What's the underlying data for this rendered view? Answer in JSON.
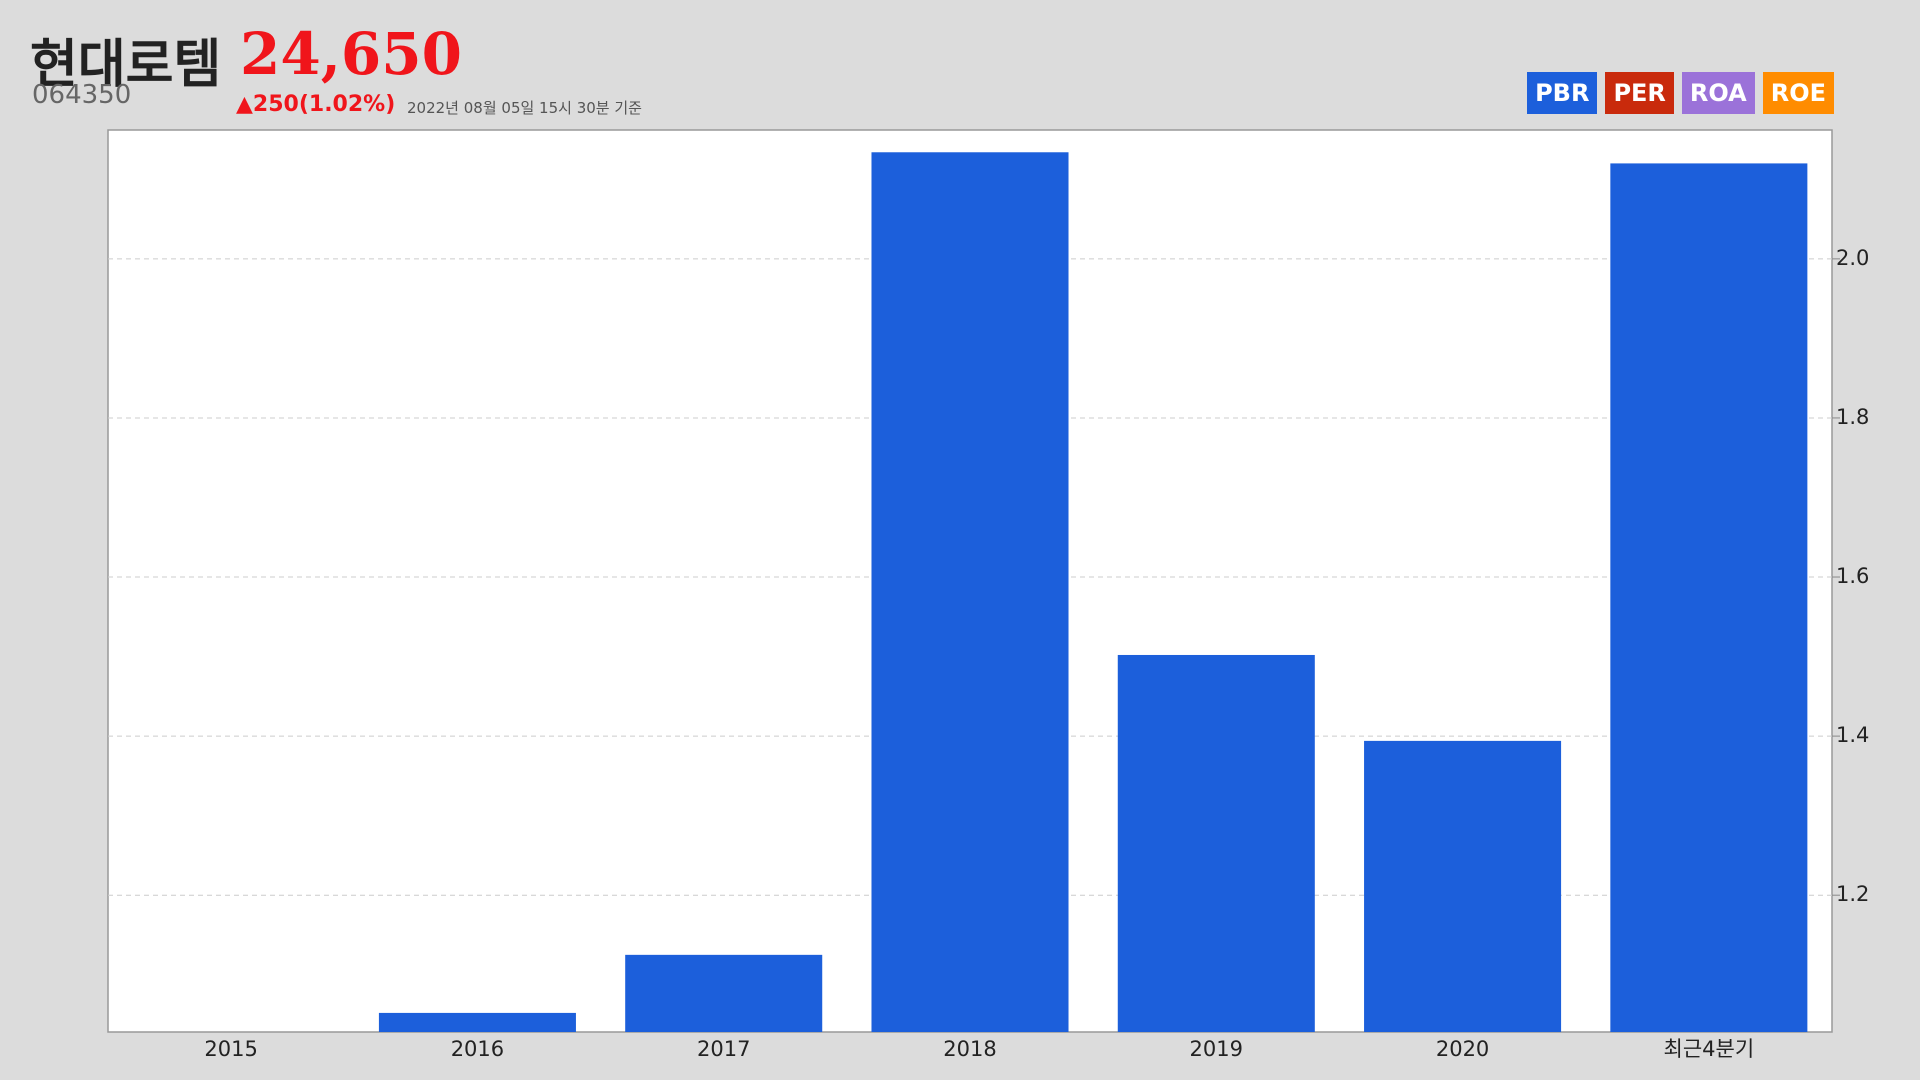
{
  "header": {
    "name": "현대로템",
    "price": "24,650",
    "code": "064350",
    "change": "▲250(1.02%)",
    "as_of": "2022년 08월 05일 15시 30분 기준",
    "buttons": [
      {
        "label": "PBR",
        "color": "#1c5fdb"
      },
      {
        "label": "PER",
        "color": "#c92a0c"
      },
      {
        "label": "ROA",
        "color": "#9b72d9"
      },
      {
        "label": "ROE",
        "color": "#ff8c00"
      }
    ]
  },
  "chart_data": {
    "type": "bar",
    "categories": [
      "2015",
      "2016",
      "2017",
      "2018",
      "2019",
      "2020",
      "최근4분기"
    ],
    "values": [
      1.028,
      1.052,
      1.125,
      2.134,
      1.502,
      1.394,
      2.12
    ],
    "color": "#1c5fdb",
    "ylim": [
      1.028,
      2.162
    ],
    "yticks": [
      1.2,
      1.4,
      1.6,
      1.8,
      {
        "value": 2.0,
        "label": "2.0"
      }
    ],
    "grid": true,
    "y_axis_side": "right"
  }
}
